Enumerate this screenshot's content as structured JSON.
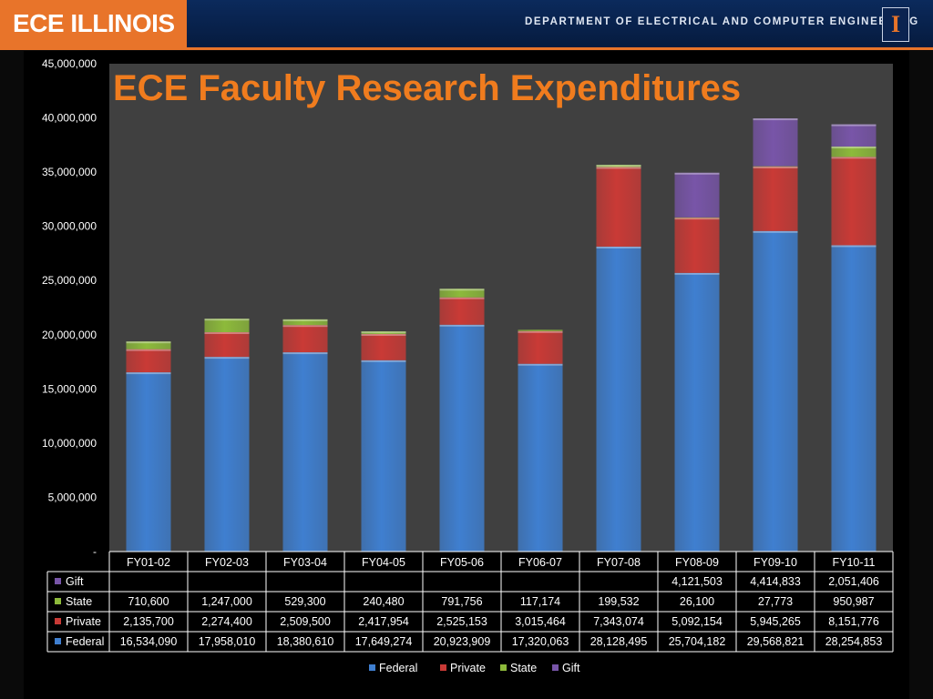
{
  "header": {
    "logo": "ECE ILLINOIS",
    "department": "DEPARTMENT OF ELECTRICAL AND COMPUTER ENGINEERING",
    "mark": "I"
  },
  "colors": {
    "Federal": "#3f7fd0",
    "Private": "#c93a36",
    "State": "#8dba3b",
    "Gift": "#7855a8",
    "accent": "#e8742a"
  },
  "chart_data": {
    "type": "bar",
    "stacked": true,
    "title": "ECE Faculty Research Expenditures",
    "categories": [
      "FY01-02",
      "FY02-03",
      "FY03-04",
      "FY04-05",
      "FY05-06",
      "FY06-07",
      "FY07-08",
      "FY08-09",
      "FY09-10",
      "FY10-11"
    ],
    "series": [
      {
        "name": "Federal",
        "values": [
          16534090,
          17958010,
          18380610,
          17649274,
          20923909,
          17320063,
          28128495,
          25704182,
          29568821,
          28254853
        ]
      },
      {
        "name": "Private",
        "values": [
          2135700,
          2274400,
          2509500,
          2417954,
          2525153,
          3015464,
          7343074,
          5092154,
          5945265,
          8151776
        ]
      },
      {
        "name": "State",
        "values": [
          710600,
          1247000,
          529300,
          240480,
          791756,
          117174,
          199532,
          26100,
          27773,
          950987
        ]
      },
      {
        "name": "Gift",
        "values": [
          null,
          null,
          null,
          null,
          null,
          null,
          null,
          4121503,
          4414833,
          2051406
        ]
      }
    ],
    "table_rows": [
      {
        "name": "Gift",
        "cells": [
          "",
          "",
          "",
          "",
          "",
          "",
          "",
          "4,121,503",
          "4,414,833",
          "2,051,406"
        ]
      },
      {
        "name": "State",
        "cells": [
          "710,600",
          "1,247,000",
          "529,300",
          "240,480",
          "791,756",
          "117,174",
          "199,532",
          "26,100",
          "27,773",
          "950,987"
        ]
      },
      {
        "name": "Private",
        "cells": [
          "2,135,700",
          "2,274,400",
          "2,509,500",
          "2,417,954",
          "2,525,153",
          "3,015,464",
          "7,343,074",
          "5,092,154",
          "5,945,265",
          "8,151,776"
        ]
      },
      {
        "name": "Federal",
        "cells": [
          "16,534,090",
          "17,958,010",
          "18,380,610",
          "17,649,274",
          "20,923,909",
          "17,320,063",
          "28,128,495",
          "25,704,182",
          "29,568,821",
          "28,254,853"
        ]
      }
    ],
    "ylim": [
      0,
      45000000
    ],
    "yticks": [
      0,
      5000000,
      10000000,
      15000000,
      20000000,
      25000000,
      30000000,
      35000000,
      40000000,
      45000000
    ],
    "ytick_labels": [
      "-",
      "5,000,000",
      "10,000,000",
      "15,000,000",
      "20,000,000",
      "25,000,000",
      "30,000,000",
      "35,000,000",
      "40,000,000",
      "45,000,000"
    ],
    "legend": [
      "Federal",
      "Private",
      "State",
      "Gift"
    ],
    "legend_position": "bottom",
    "grid": false
  }
}
